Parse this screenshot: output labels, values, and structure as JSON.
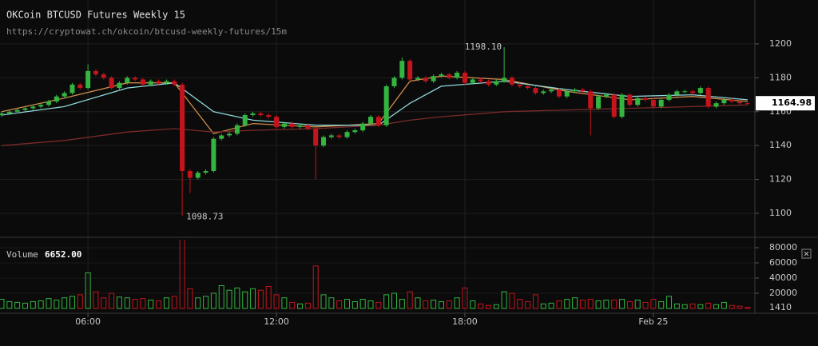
{
  "chart_data": {
    "type": "candlestick",
    "title": "OKCoin BTCUSD Futures Weekly 15",
    "subtitle": "https://cryptowat.ch/okcoin/btcusd-weekly-futures/15m",
    "x": [
      "03:15",
      "03:30",
      "03:45",
      "04:00",
      "04:15",
      "04:30",
      "04:45",
      "05:00",
      "05:15",
      "05:30",
      "05:45",
      "06:00",
      "06:15",
      "06:30",
      "06:45",
      "07:00",
      "07:15",
      "07:30",
      "07:45",
      "08:00",
      "08:15",
      "08:30",
      "08:45",
      "09:00",
      "09:15",
      "09:30",
      "09:45",
      "10:00",
      "10:15",
      "10:30",
      "10:45",
      "11:00",
      "11:15",
      "11:30",
      "11:45",
      "12:00",
      "12:15",
      "12:30",
      "12:45",
      "13:00",
      "13:15",
      "13:30",
      "13:45",
      "14:00",
      "14:15",
      "14:30",
      "14:45",
      "15:00",
      "15:15",
      "15:30",
      "15:45",
      "16:00",
      "16:15",
      "16:30",
      "16:45",
      "17:00",
      "17:15",
      "17:30",
      "17:45",
      "18:00",
      "18:15",
      "18:30",
      "18:45",
      "19:00",
      "19:15",
      "19:30",
      "19:45",
      "20:00",
      "20:15",
      "20:30",
      "20:45",
      "21:00",
      "21:15",
      "21:30",
      "21:45",
      "22:00",
      "22:15",
      "22:30",
      "22:45",
      "23:00",
      "23:15",
      "23:30",
      "23:45",
      "00:00",
      "00:15",
      "00:30",
      "00:45",
      "01:00",
      "01:15",
      "01:30",
      "01:45",
      "02:00",
      "02:15",
      "02:30",
      "02:45",
      "03:00"
    ],
    "open": [
      1158,
      1159,
      1160,
      1161,
      1162,
      1163,
      1164,
      1166,
      1169,
      1171,
      1176,
      1174,
      1184,
      1182,
      1180,
      1174,
      1177,
      1180,
      1179,
      1176,
      1178,
      1177,
      1178,
      1176,
      1125,
      1121,
      1124,
      1125,
      1144,
      1146,
      1147,
      1152,
      1158,
      1159,
      1158,
      1157,
      1151,
      1153,
      1151,
      1152,
      1150,
      1140,
      1145,
      1146,
      1145,
      1148,
      1149,
      1153,
      1157,
      1152,
      1175,
      1180,
      1190,
      1179,
      1180,
      1178,
      1181,
      1182,
      1180,
      1183,
      1177,
      1179,
      1178,
      1176,
      1178,
      1180,
      1176,
      1175,
      1174,
      1171,
      1172,
      1173,
      1169,
      1172,
      1173,
      1172,
      1162,
      1169,
      1170,
      1157,
      1170,
      1164,
      1168,
      1167,
      1163,
      1167,
      1170,
      1172,
      1172,
      1171,
      1174,
      1163,
      1165,
      1167,
      1166,
      1165
    ],
    "high": [
      1160,
      1161,
      1162,
      1163,
      1164,
      1165,
      1167,
      1170,
      1172,
      1177,
      1177,
      1188,
      1185,
      1183,
      1181,
      1178,
      1181,
      1181,
      1180,
      1179,
      1179,
      1179,
      1179,
      1177,
      1126,
      1125,
      1126,
      1145,
      1147,
      1148,
      1153,
      1159,
      1160,
      1160,
      1159,
      1158,
      1154,
      1154,
      1153,
      1153,
      1151,
      1146,
      1147,
      1147,
      1149,
      1150,
      1154,
      1158,
      1158,
      1176,
      1181,
      1192,
      1191,
      1181,
      1181,
      1182,
      1183,
      1183,
      1184,
      1184,
      1180,
      1180,
      1179,
      1179,
      1198.1,
      1181,
      1177,
      1176,
      1175,
      1173,
      1174,
      1174,
      1173,
      1174,
      1174,
      1173,
      1170,
      1171,
      1171,
      1171,
      1171,
      1169,
      1169,
      1168,
      1168,
      1171,
      1173,
      1173,
      1173,
      1175,
      1175,
      1166,
      1168,
      1168,
      1167,
      1166
    ],
    "low": [
      1157,
      1158,
      1159,
      1160,
      1161,
      1162,
      1163,
      1165,
      1168,
      1170,
      1173,
      1173,
      1181,
      1179,
      1173,
      1173,
      1176,
      1178,
      1175,
      1175,
      1176,
      1176,
      1175,
      1098.73,
      1112,
      1120,
      1123,
      1124,
      1143,
      1145,
      1146,
      1151,
      1157,
      1157,
      1156,
      1150,
      1150,
      1150,
      1150,
      1149,
      1120,
      1139,
      1144,
      1144,
      1144,
      1147,
      1148,
      1152,
      1151,
      1151,
      1174,
      1179,
      1178,
      1178,
      1177,
      1177,
      1180,
      1179,
      1179,
      1176,
      1176,
      1177,
      1175,
      1175,
      1177,
      1175,
      1174,
      1173,
      1170,
      1170,
      1171,
      1168,
      1168,
      1171,
      1171,
      1146,
      1161,
      1168,
      1156,
      1156,
      1163,
      1163,
      1166,
      1162,
      1162,
      1166,
      1169,
      1171,
      1170,
      1170,
      1162,
      1162,
      1164,
      1165,
      1164,
      1164
    ],
    "close": [
      1159,
      1160,
      1161,
      1162,
      1163,
      1164,
      1166,
      1169,
      1171,
      1176,
      1174,
      1184,
      1182,
      1180,
      1174,
      1177,
      1180,
      1179,
      1176,
      1178,
      1177,
      1178,
      1176,
      1125,
      1121,
      1124,
      1125,
      1144,
      1146,
      1147,
      1152,
      1158,
      1159,
      1158,
      1157,
      1151,
      1153,
      1151,
      1152,
      1150,
      1140,
      1145,
      1146,
      1145,
      1148,
      1149,
      1153,
      1157,
      1152,
      1175,
      1180,
      1190,
      1179,
      1180,
      1178,
      1181,
      1182,
      1180,
      1183,
      1177,
      1179,
      1178,
      1176,
      1178,
      1180,
      1176,
      1175,
      1174,
      1171,
      1172,
      1173,
      1169,
      1172,
      1173,
      1172,
      1162,
      1169,
      1170,
      1157,
      1170,
      1164,
      1168,
      1167,
      1163,
      1167,
      1170,
      1172,
      1172,
      1171,
      1174,
      1163,
      1165,
      1167,
      1166,
      1165,
      1164.98
    ],
    "up_color": "#33b540",
    "down_color": "#c4141c",
    "ylim": [
      1086.8,
      1225.9
    ],
    "yticks": [
      1100,
      1120,
      1140,
      1160,
      1180,
      1200
    ],
    "xticks": [
      "06:00",
      "12:00",
      "18:00",
      {
        "value": "00:00",
        "label": "Feb 25"
      }
    ],
    "grid": true,
    "annotations": [
      {
        "x": "19:15",
        "value": 1198.1,
        "label": "1198.10"
      },
      {
        "x": "09:00",
        "value": 1098.73,
        "label": "1098.73"
      }
    ],
    "indicators": [
      {
        "color": "#d08a4a",
        "x": [
          "03:15",
          "05:15",
          "07:15",
          "08:45",
          "10:00",
          "11:15",
          "13:15",
          "15:15",
          "16:15",
          "17:15",
          "19:15",
          "21:15",
          "23:15",
          "01:15",
          "03:00"
        ],
        "values": [
          1160,
          1168,
          1177,
          1177,
          1147,
          1153,
          1151,
          1153,
          1178,
          1181,
          1179,
          1172,
          1167,
          1169,
          1166
        ]
      },
      {
        "color": "#8fd6d6",
        "x": [
          "03:15",
          "05:15",
          "07:15",
          "08:45",
          "10:00",
          "11:15",
          "13:15",
          "15:15",
          "16:15",
          "17:15",
          "19:15",
          "21:15",
          "23:15",
          "01:15",
          "03:00"
        ],
        "values": [
          1158,
          1163,
          1174,
          1177,
          1160,
          1155,
          1152,
          1152,
          1165,
          1175,
          1178,
          1173,
          1169,
          1170,
          1167
        ]
      },
      {
        "color": "#7a2a2a",
        "x": [
          "03:15",
          "05:15",
          "07:15",
          "08:45",
          "10:00",
          "11:15",
          "13:15",
          "15:15",
          "16:15",
          "17:15",
          "19:15",
          "21:15",
          "23:15",
          "01:15",
          "03:00"
        ],
        "values": [
          1140,
          1143,
          1148,
          1150,
          1148,
          1149,
          1150,
          1152,
          1155,
          1157,
          1160,
          1161,
          1162,
          1163,
          1164
        ]
      }
    ],
    "volume": {
      "label": "Volume",
      "readout": "6652.00",
      "values": [
        12000,
        9000,
        8000,
        7000,
        9000,
        10000,
        13000,
        11000,
        14000,
        16000,
        18000,
        47000,
        22000,
        14000,
        20000,
        15000,
        14000,
        12000,
        13000,
        11000,
        10000,
        14000,
        16000,
        92000,
        26000,
        14000,
        16000,
        20000,
        30000,
        24000,
        27000,
        22000,
        26000,
        24000,
        29000,
        18000,
        14000,
        8000,
        6000,
        7000,
        56000,
        18000,
        14000,
        10000,
        12000,
        9000,
        12000,
        10000,
        8000,
        18000,
        20000,
        12000,
        22000,
        14000,
        10000,
        11000,
        9000,
        10000,
        14000,
        27000,
        10000,
        6000,
        4000,
        5000,
        22000,
        20000,
        12000,
        9000,
        18000,
        6000,
        7000,
        10000,
        12000,
        14000,
        11000,
        12000,
        10000,
        11000,
        11000,
        12000,
        9000,
        11000,
        8000,
        12000,
        9000,
        16000,
        6000,
        5000,
        6000,
        5000,
        7000,
        5000,
        8000,
        4000,
        3000,
        1410
      ],
      "ylim": [
        0,
        90500
      ],
      "yticks": [
        20000,
        40000,
        60000,
        80000
      ]
    }
  }
}
